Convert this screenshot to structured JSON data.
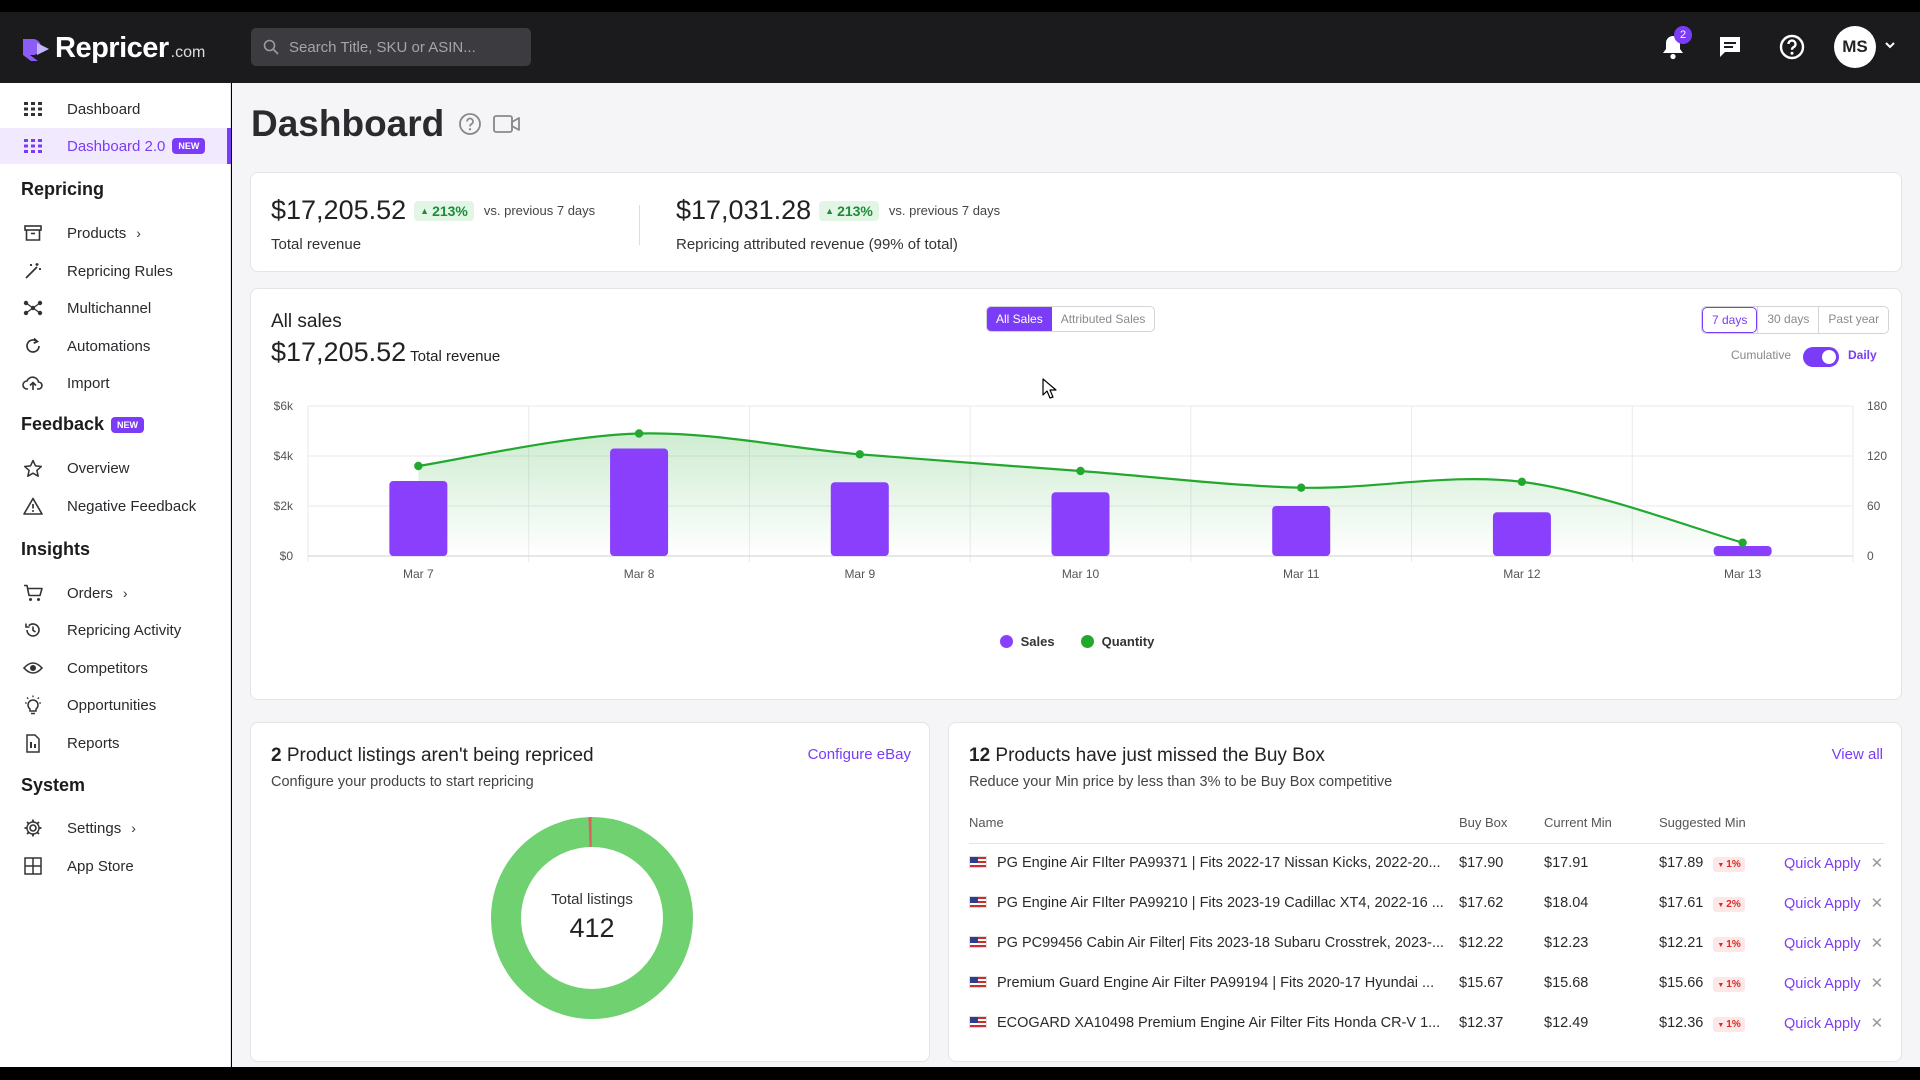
{
  "brand": {
    "name": "Repricer",
    "suffix": ".com",
    "accent": "#7b3cf7"
  },
  "search": {
    "placeholder": "Search Title, SKU or ASIN..."
  },
  "topbar": {
    "notification_count": "2",
    "avatar_initials": "MS"
  },
  "sidebar": {
    "dashboard": "Dashboard",
    "dashboard2": "Dashboard 2.0",
    "new_badge": "NEW",
    "sections": {
      "repricing": "Repricing",
      "feedback": "Feedback",
      "insights": "Insights",
      "system": "System"
    },
    "repricing_items": [
      "Products",
      "Repricing Rules",
      "Multichannel",
      "Automations",
      "Import"
    ],
    "feedback_items": [
      "Overview",
      "Negative Feedback"
    ],
    "insights_items": [
      "Orders",
      "Repricing Activity",
      "Competitors",
      "Opportunities",
      "Reports"
    ],
    "system_items": [
      "Settings",
      "App Store"
    ]
  },
  "page": {
    "title": "Dashboard"
  },
  "summary": {
    "total_revenue": "$17,205.52",
    "total_delta": "213%",
    "total_vs": "vs. previous 7 days",
    "total_label": "Total revenue",
    "attributed_revenue": "$17,031.28",
    "attributed_delta": "213%",
    "attributed_vs": "vs. previous 7 days",
    "attributed_label": "Repricing attributed revenue (99% of total)"
  },
  "sales": {
    "title": "All sales",
    "amount": "$17,205.52",
    "amount_label": "Total revenue",
    "tabs": [
      "All Sales",
      "Attributed Sales"
    ],
    "ranges": [
      "7 days",
      "30 days",
      "Past year"
    ],
    "cumulative_label": "Cumulative",
    "daily_label": "Daily"
  },
  "chart_data": {
    "type": "bar",
    "categories": [
      "Mar 7",
      "Mar 8",
      "Mar 9",
      "Mar 10",
      "Mar 11",
      "Mar 12",
      "Mar 13"
    ],
    "series": [
      {
        "name": "Sales",
        "type": "bar",
        "axis": "left",
        "color": "#8a3ffc",
        "values": [
          3000,
          4300,
          2950,
          2550,
          2000,
          1750,
          400
        ]
      },
      {
        "name": "Quantity",
        "type": "line",
        "axis": "right",
        "color": "#22a82e",
        "values": [
          108,
          147,
          122,
          102,
          82,
          89,
          16
        ]
      }
    ],
    "y_left": {
      "ticks": [
        "$0",
        "$2k",
        "$4k",
        "$6k"
      ],
      "ylim": [
        0,
        6000
      ]
    },
    "y_right": {
      "ticks": [
        "0",
        "60",
        "120",
        "180"
      ],
      "ylim": [
        0,
        180
      ]
    },
    "legend": "bottom-center",
    "grid": true
  },
  "unrepriced": {
    "count": "2",
    "title_rest": " Product listings aren't being repriced",
    "subtitle": "Configure your products to start repricing",
    "link": "Configure eBay",
    "donut_label": "Total listings",
    "donut_value": "412",
    "donut_fraction_unrepriced": 0.0049,
    "colors": {
      "repriced": "#6fd16f",
      "unrepriced": "#e06060"
    }
  },
  "buybox": {
    "count": "12",
    "title_rest": " Products have just missed the Buy Box",
    "subtitle": "Reduce your Min price by less than 3% to be Buy Box competitive",
    "view_all": "View all",
    "columns": [
      "Name",
      "Buy Box",
      "Current Min",
      "Suggested Min"
    ],
    "action_label": "Quick Apply",
    "rows": [
      {
        "name": "PG Engine Air FIlter PA99371 | Fits 2022-17 Nissan Kicks, 2022-20...",
        "buy_box": "$17.90",
        "current_min": "$17.91",
        "suggested_min": "$17.89",
        "delta": "1%"
      },
      {
        "name": "PG Engine Air FIlter PA99210 | Fits 2023-19 Cadillac XT4, 2022-16 ...",
        "buy_box": "$17.62",
        "current_min": "$18.04",
        "suggested_min": "$17.61",
        "delta": "2%"
      },
      {
        "name": "PG PC99456 Cabin Air Filter| Fits 2023-18 Subaru Crosstrek, 2023-...",
        "buy_box": "$12.22",
        "current_min": "$12.23",
        "suggested_min": "$12.21",
        "delta": "1%"
      },
      {
        "name": "Premium Guard Engine Air Filter PA99194 | Fits 2020-17 Hyundai ...",
        "buy_box": "$15.67",
        "current_min": "$15.68",
        "suggested_min": "$15.66",
        "delta": "1%"
      },
      {
        "name": "ECOGARD XA10498 Premium Engine Air Filter Fits Honda CR-V 1...",
        "buy_box": "$12.37",
        "current_min": "$12.49",
        "suggested_min": "$12.36",
        "delta": "1%"
      }
    ]
  }
}
